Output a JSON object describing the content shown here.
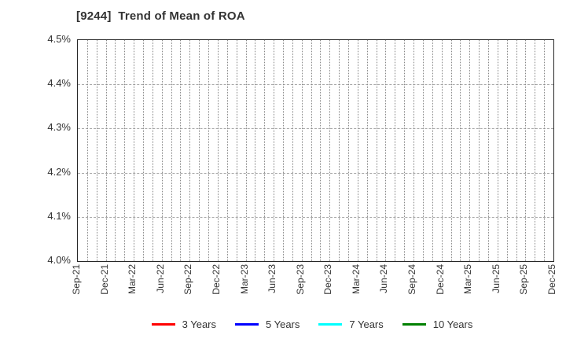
{
  "page": {
    "background": "#ffffff"
  },
  "title": "[9244]  Trend of Mean of ROA",
  "chart_data": {
    "type": "line",
    "title": "[9244]  Trend of Mean of ROA",
    "x_tick_labels": [
      "Sep-21",
      "Dec-21",
      "Mar-22",
      "Jun-22",
      "Sep-22",
      "Dec-22",
      "Mar-23",
      "Jun-23",
      "Sep-23",
      "Dec-23",
      "Mar-24",
      "Jun-24",
      "Sep-24",
      "Dec-24",
      "Mar-25",
      "Jun-25",
      "Sep-25",
      "Dec-25"
    ],
    "x_minor_grid_unit": "month",
    "months_per_tick": 3,
    "y_tick_labels": [
      "4.0%",
      "4.1%",
      "4.2%",
      "4.3%",
      "4.4%",
      "4.5%"
    ],
    "ylim": [
      4.0,
      4.5
    ],
    "xlabel": "",
    "ylabel": "",
    "grid": "on",
    "legend_position": "bottom",
    "series": [
      {
        "name": "3 Years",
        "color": "#ff0000",
        "values": []
      },
      {
        "name": "5 Years",
        "color": "#0000ff",
        "values": []
      },
      {
        "name": "7 Years",
        "color": "#00ffff",
        "values": []
      },
      {
        "name": "10 Years",
        "color": "#008000",
        "values": []
      }
    ],
    "plot_note": "no data lines visible within displayed y-range"
  },
  "colors": {
    "title_text": "#333333",
    "tick_text": "#333333",
    "plot_border": "#262626",
    "major_grid": "#aaaaaa",
    "minor_grid": "#888888"
  }
}
